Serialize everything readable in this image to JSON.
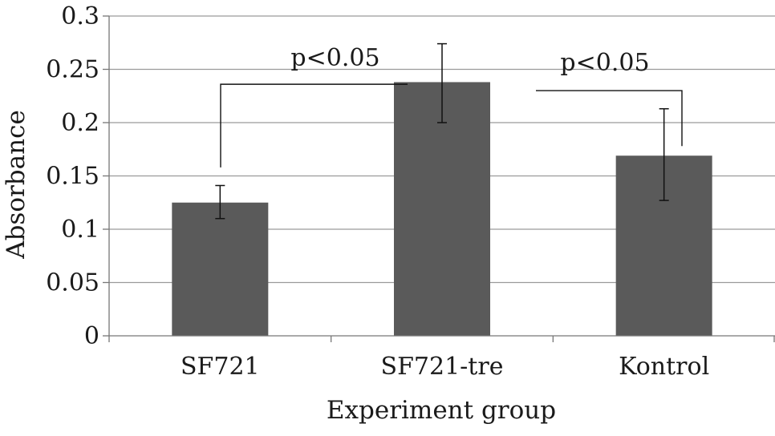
{
  "chart_data": {
    "type": "bar",
    "title": "",
    "xlabel": "Experiment group",
    "ylabel": "Absorbance",
    "categories": [
      "SF721",
      "SF721-tre",
      "Kontrol"
    ],
    "values": [
      0.125,
      0.238,
      0.169
    ],
    "error_low": [
      0.11,
      0.2,
      0.127
    ],
    "error_high": [
      0.141,
      0.274,
      0.213
    ],
    "ylim": [
      0,
      0.3
    ],
    "yticks": [
      0,
      0.05,
      0.1,
      0.15,
      0.2,
      0.25,
      0.3
    ],
    "ytick_labels": [
      "0",
      "0.05",
      "0.1",
      "0.15",
      "0.2",
      "0.25",
      "0.3"
    ],
    "grid": true,
    "legend": "none",
    "bar_color": "#5a5a5a",
    "annotations": [
      {
        "text": "p<0.05",
        "from": 0,
        "to": 1,
        "start_y": 0.158,
        "bracket_y": 0.236,
        "end_y": 0.236
      },
      {
        "text": "p<0.05",
        "from": 1,
        "to": 2,
        "start_y": 0.23,
        "bracket_y": 0.23,
        "end_y": 0.178
      }
    ]
  }
}
